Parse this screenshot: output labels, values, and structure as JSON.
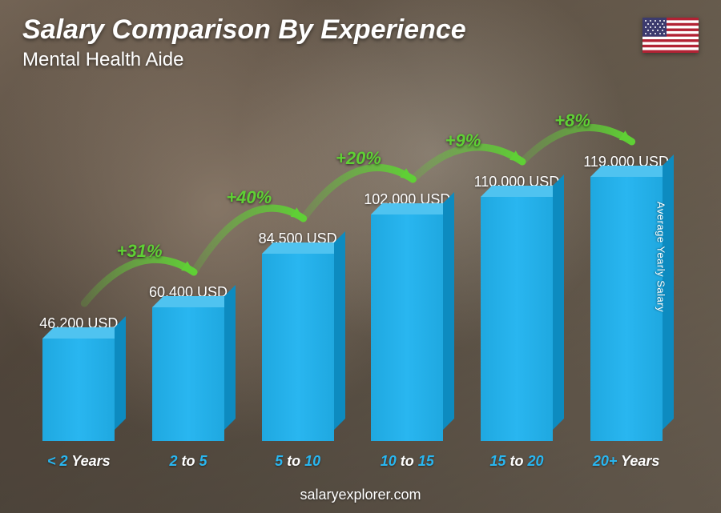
{
  "header": {
    "title": "Salary Comparison By Experience",
    "subtitle": "Mental Health Aide",
    "title_color": "#ffffff",
    "title_fontsize": 34,
    "subtitle_fontsize": 24
  },
  "flag": {
    "country": "United States",
    "stripe_red": "#b22234",
    "stripe_white": "#ffffff",
    "canton_blue": "#3c3b6e"
  },
  "chart": {
    "type": "bar",
    "bar_color_front": "#29b6f0",
    "bar_color_top": "#4fc3f0",
    "bar_color_side": "#0d8bc0",
    "value_color": "#ffffff",
    "value_fontsize": 18,
    "xlabel_number_color": "#29b6f0",
    "xlabel_word_color": "#ffffff",
    "xlabel_fontsize": 18,
    "arrow_color": "#5fd035",
    "pct_fontsize": 22,
    "max_value": 119000,
    "bars": [
      {
        "label_pre": "< 2",
        "label_post": "Years",
        "value": 46200,
        "value_label": "46,200 USD"
      },
      {
        "label_pre": "2",
        "label_mid": "to",
        "label_post2": "5",
        "value": 60400,
        "value_label": "60,400 USD",
        "pct": "+31%"
      },
      {
        "label_pre": "5",
        "label_mid": "to",
        "label_post2": "10",
        "value": 84500,
        "value_label": "84,500 USD",
        "pct": "+40%"
      },
      {
        "label_pre": "10",
        "label_mid": "to",
        "label_post2": "15",
        "value": 102000,
        "value_label": "102,000 USD",
        "pct": "+20%"
      },
      {
        "label_pre": "15",
        "label_mid": "to",
        "label_post2": "20",
        "value": 110000,
        "value_label": "110,000 USD",
        "pct": "+9%"
      },
      {
        "label_pre": "20+",
        "label_post": "Years",
        "value": 119000,
        "value_label": "119,000 USD",
        "pct": "+8%"
      }
    ]
  },
  "y_axis_label": "Average Yearly Salary",
  "footer": "salaryexplorer.com"
}
